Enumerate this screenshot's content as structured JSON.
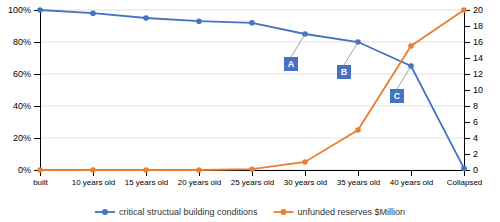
{
  "chart_data": {
    "type": "line",
    "categories": [
      "built",
      "10 years old",
      "15 years old",
      "20 years old",
      "25 years old",
      "30 years old",
      "35 years old",
      "40 years old",
      "Collapsed"
    ],
    "series": [
      {
        "name": "critical structual building conditions",
        "color": "#4472C4",
        "marker": "circle",
        "values": [
          100,
          98,
          95,
          93,
          92,
          85,
          80,
          65,
          1
        ]
      },
      {
        "name": "unfunded reserves $Million",
        "color": "#ED7D31",
        "marker": "circle",
        "axis": "y2",
        "values": [
          0,
          0,
          0,
          0,
          0.1,
          1,
          5,
          15.5,
          20
        ]
      }
    ],
    "ylim": [
      0,
      100
    ],
    "yticks": [
      {
        "value": 0,
        "label": "0%"
      },
      {
        "value": 20,
        "label": "20%"
      },
      {
        "value": 40,
        "label": "40%"
      },
      {
        "value": 60,
        "label": "60%"
      },
      {
        "value": 80,
        "label": "80%"
      },
      {
        "value": 100,
        "label": "100%"
      }
    ],
    "y2lim": [
      0,
      20
    ],
    "y2ticks": [
      0,
      2,
      4,
      6,
      8,
      10,
      12,
      14,
      16,
      18,
      20
    ],
    "grid": true,
    "legend": "bottom",
    "annotations": [
      {
        "text": "A",
        "x": "30 years old",
        "y": 85
      },
      {
        "text": "B",
        "x": "35 years old",
        "y": 80
      },
      {
        "text": "C",
        "x": "40 years old",
        "y": 65
      }
    ]
  }
}
